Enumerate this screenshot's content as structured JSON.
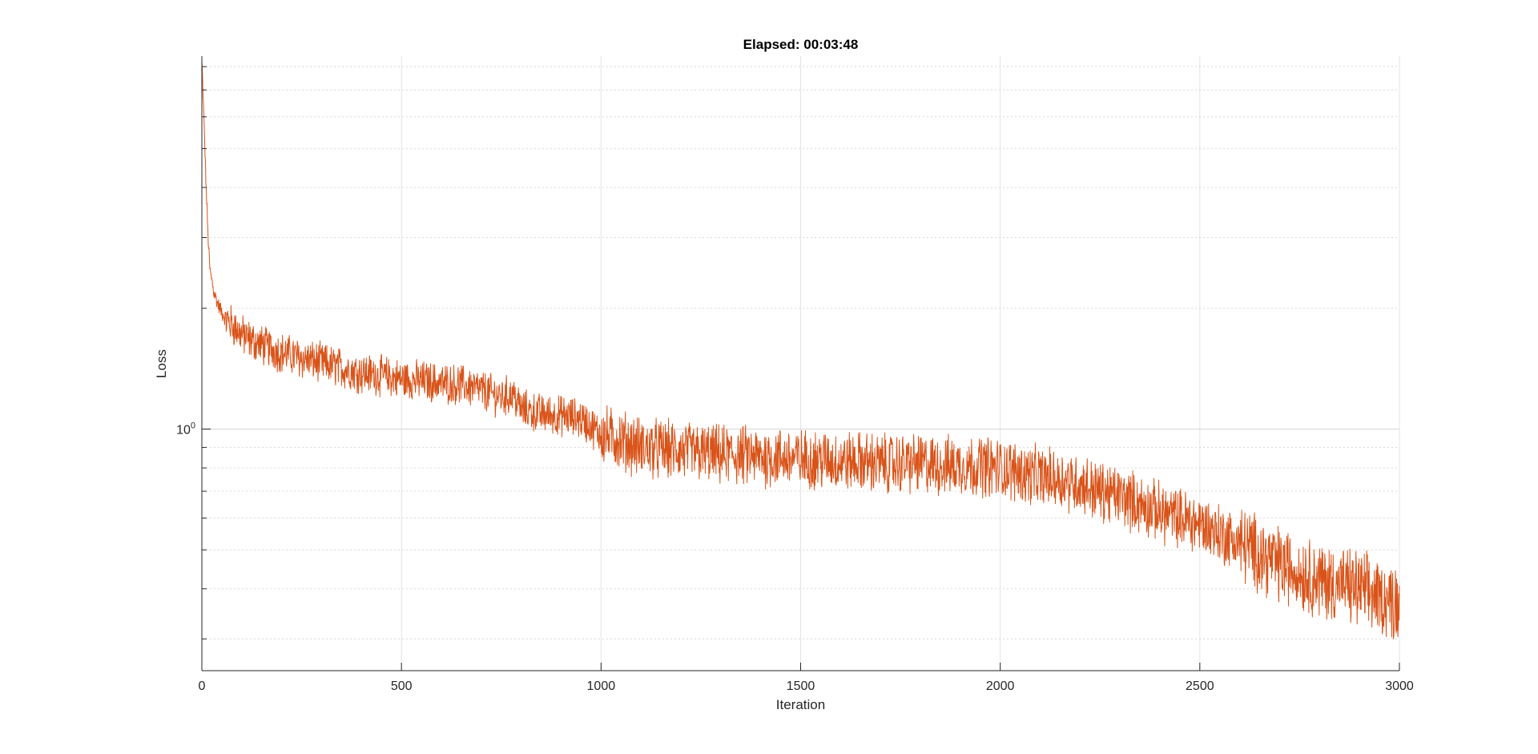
{
  "chart_data": {
    "type": "line",
    "title": "Elapsed: 00:03:48",
    "xlabel": "Iteration",
    "ylabel": "Loss",
    "xlim": [
      0,
      3000
    ],
    "xticks": [
      0,
      500,
      1000,
      1500,
      2000,
      2500,
      3000
    ],
    "yscale": "log",
    "ylim": [
      0.25,
      8.5
    ],
    "yticks": [
      {
        "value": 1,
        "base": "10",
        "exponent": "0"
      }
    ],
    "yminorticks": [
      0.3,
      0.4,
      0.5,
      0.6,
      0.7,
      0.8,
      0.9,
      2,
      3,
      4,
      5,
      6,
      7,
      8
    ],
    "grid": true,
    "series": [
      {
        "color": "#D95319",
        "x": [
          0,
          5,
          10,
          15,
          20,
          30,
          40,
          50,
          60,
          80,
          100,
          125,
          150,
          175,
          200,
          250,
          300,
          350,
          400,
          450,
          500,
          550,
          600,
          650,
          700,
          750,
          780,
          800,
          850,
          900,
          950,
          1000,
          1050,
          1100,
          1150,
          1200,
          1250,
          1300,
          1350,
          1400,
          1450,
          1500,
          1550,
          1600,
          1650,
          1700,
          1750,
          1800,
          1850,
          1900,
          1950,
          2000,
          2050,
          2100,
          2150,
          2200,
          2250,
          2300,
          2350,
          2400,
          2450,
          2500,
          2550,
          2600,
          2650,
          2700,
          2750,
          2800,
          2850,
          2900,
          2950,
          3000
        ],
        "y": [
          8.2,
          6.0,
          4.2,
          3.1,
          2.5,
          2.2,
          2.05,
          1.95,
          1.88,
          1.8,
          1.72,
          1.66,
          1.62,
          1.58,
          1.55,
          1.5,
          1.46,
          1.42,
          1.38,
          1.36,
          1.33,
          1.32,
          1.3,
          1.29,
          1.25,
          1.2,
          1.22,
          1.12,
          1.09,
          1.08,
          1.06,
          0.97,
          0.94,
          0.9,
          0.89,
          0.88,
          0.87,
          0.86,
          0.86,
          0.85,
          0.85,
          0.84,
          0.84,
          0.83,
          0.83,
          0.82,
          0.82,
          0.82,
          0.81,
          0.81,
          0.81,
          0.8,
          0.78,
          0.76,
          0.75,
          0.73,
          0.7,
          0.68,
          0.65,
          0.62,
          0.6,
          0.58,
          0.55,
          0.52,
          0.49,
          0.46,
          0.44,
          0.42,
          0.41,
          0.4,
          0.38,
          0.37
        ]
      }
    ]
  }
}
